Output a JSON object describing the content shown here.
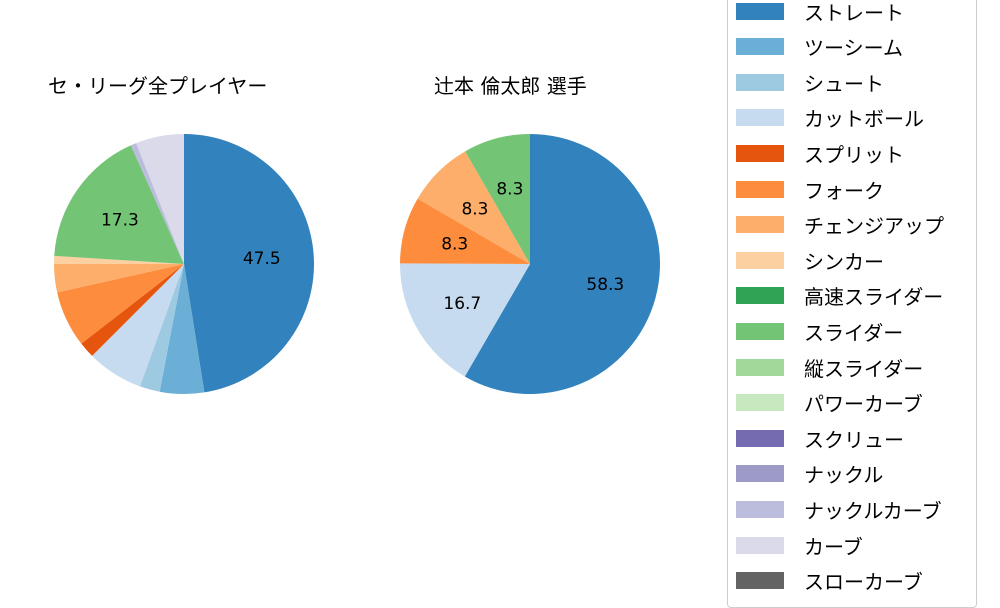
{
  "chart_data": [
    {
      "type": "pie",
      "title": "セ・リーグ全プレイヤー",
      "categories": [
        "ストレート",
        "ツーシーム",
        "シュート",
        "カットボール",
        "スプリット",
        "フォーク",
        "チェンジアップ",
        "シンカー",
        "高速スライダー",
        "スライダー",
        "縦スライダー",
        "パワーカーブ",
        "スクリュー",
        "ナックル",
        "ナックルカーブ",
        "カーブ",
        "スローカーブ"
      ],
      "values": [
        47.5,
        5.5,
        2.5,
        7.0,
        2.0,
        7.0,
        3.5,
        1.0,
        0,
        17.3,
        0,
        0,
        0,
        0,
        0.7,
        6.0,
        0
      ],
      "labels_shown": {
        "ストレート": "47.5",
        "スライダー": "17.3"
      },
      "startangle": 90,
      "direction": "clockwise"
    },
    {
      "type": "pie",
      "title": "辻本 倫太郎  選手",
      "categories": [
        "ストレート",
        "カットボール",
        "フォーク",
        "チェンジアップ",
        "スライダー"
      ],
      "values": [
        58.3,
        16.7,
        8.3,
        8.3,
        8.3
      ],
      "labels_shown": {
        "ストレート": "58.3",
        "カットボール": "16.7",
        "フォーク": "8.3",
        "チェンジアップ": "8.3",
        "スライダー": "8.3"
      },
      "startangle": 90,
      "direction": "clockwise"
    }
  ],
  "titles": {
    "left": "セ・リーグ全プレイヤー",
    "right": "辻本 倫太郎  選手"
  },
  "legend": [
    {
      "label": "ストレート",
      "color": "#3182bd"
    },
    {
      "label": "ツーシーム",
      "color": "#6baed6"
    },
    {
      "label": "シュート",
      "color": "#9ecae1"
    },
    {
      "label": "カットボール",
      "color": "#c6dbef"
    },
    {
      "label": "スプリット",
      "color": "#e6550d"
    },
    {
      "label": "フォーク",
      "color": "#fd8d3c"
    },
    {
      "label": "チェンジアップ",
      "color": "#fdae6b"
    },
    {
      "label": "シンカー",
      "color": "#fdd0a2"
    },
    {
      "label": "高速スライダー",
      "color": "#31a354"
    },
    {
      "label": "スライダー",
      "color": "#74c476"
    },
    {
      "label": "縦スライダー",
      "color": "#a1d99b"
    },
    {
      "label": "パワーカーブ",
      "color": "#c7e9c0"
    },
    {
      "label": "スクリュー",
      "color": "#756bb1"
    },
    {
      "label": "ナックル",
      "color": "#9e9ac8"
    },
    {
      "label": "ナックルカーブ",
      "color": "#bcbddc"
    },
    {
      "label": "カーブ",
      "color": "#dadaeb"
    },
    {
      "label": "スローカーブ",
      "color": "#636363"
    }
  ]
}
